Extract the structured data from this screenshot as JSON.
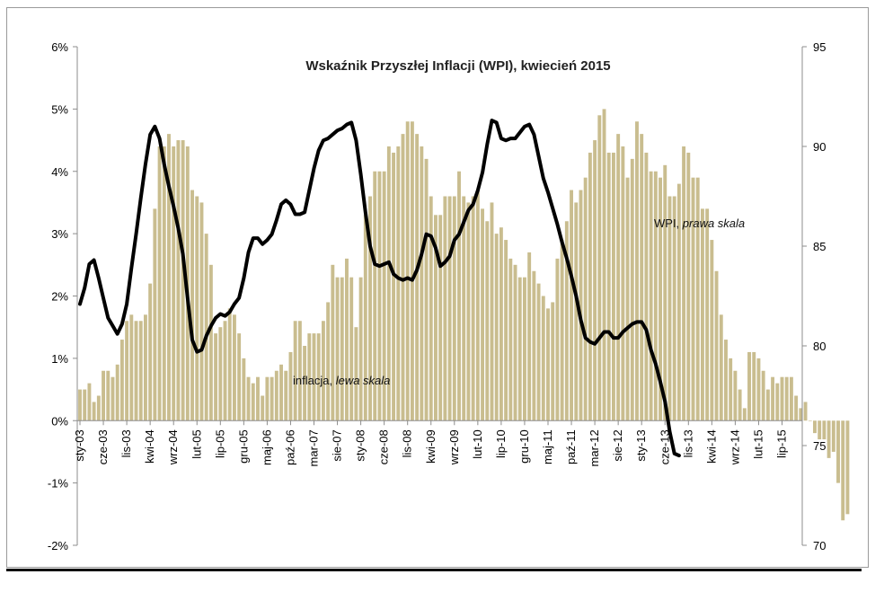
{
  "chart_data": {
    "type": "bar+line",
    "title": "Wskaźnik Przyszłej Inflacji (WPI), kwiecień 2015",
    "y_left": {
      "ticks": [
        "6%",
        "5%",
        "4%",
        "3%",
        "2%",
        "1%",
        "0%",
        "-1%",
        "-2%"
      ],
      "range": [
        -2,
        6
      ]
    },
    "y_right": {
      "ticks": [
        "95",
        "90",
        "85",
        "80",
        "75",
        "70"
      ],
      "range": [
        70,
        95
      ]
    },
    "x_labels": [
      "sty-03",
      "cze-03",
      "lis-03",
      "kwi-04",
      "wrz-04",
      "lut-05",
      "lip-05",
      "gru-05",
      "maj-06",
      "paź-06",
      "mar-07",
      "sie-07",
      "sty-08",
      "cze-08",
      "lis-08",
      "kwi-09",
      "wrz-09",
      "lut-10",
      "lip-10",
      "gru-10",
      "maj-11",
      "paź-11",
      "mar-12",
      "sie-12",
      "sty-13",
      "cze-13",
      "lis-13",
      "kwi-14",
      "wrz-14",
      "lut-15",
      "lip-15"
    ],
    "series": [
      {
        "name": "inflacja",
        "axis": "left",
        "type": "bar",
        "color": "#c9bd8f",
        "values": [
          0.5,
          0.5,
          0.6,
          0.3,
          0.4,
          0.8,
          0.8,
          0.7,
          0.9,
          1.3,
          1.6,
          1.7,
          1.6,
          1.6,
          1.7,
          2.2,
          3.4,
          4.4,
          4.4,
          4.6,
          4.4,
          4.5,
          4.5,
          4.4,
          3.7,
          3.6,
          3.5,
          3.0,
          2.5,
          1.4,
          1.5,
          1.6,
          1.8,
          1.7,
          1.4,
          1.0,
          0.7,
          0.6,
          0.7,
          0.4,
          0.7,
          0.7,
          0.8,
          0.9,
          0.8,
          1.1,
          1.6,
          1.6,
          1.2,
          1.4,
          1.4,
          1.4,
          1.6,
          1.9,
          2.5,
          2.3,
          2.3,
          2.6,
          2.3,
          1.5,
          2.3,
          3.3,
          3.6,
          4.0,
          4.0,
          4.0,
          4.4,
          4.3,
          4.4,
          4.6,
          4.8,
          4.8,
          4.6,
          4.4,
          4.2,
          3.6,
          3.3,
          3.3,
          3.6,
          3.6,
          3.6,
          4.0,
          3.6,
          3.5,
          3.6,
          3.7,
          3.4,
          3.2,
          3.5,
          3.0,
          3.1,
          2.9,
          2.6,
          2.5,
          2.3,
          2.3,
          2.7,
          2.4,
          2.2,
          2.0,
          1.8,
          1.9,
          2.6,
          2.9,
          3.2,
          3.7,
          3.5,
          3.7,
          3.9,
          4.3,
          4.5,
          4.9,
          5.0,
          4.3,
          4.3,
          4.6,
          4.4,
          3.9,
          4.2,
          4.8,
          4.6,
          4.3,
          4.0,
          4.0,
          3.9,
          4.1,
          3.6,
          3.6,
          3.8,
          4.4,
          4.3,
          3.9,
          3.9,
          3.4,
          3.4,
          2.9,
          2.4,
          1.7,
          1.3,
          1.0,
          0.8,
          0.5,
          0.2,
          1.1,
          1.1,
          1.0,
          0.8,
          0.5,
          0.7,
          0.6,
          0.7,
          0.7,
          0.7,
          0.4,
          0.2,
          0.3,
          0.0,
          -0.2,
          -0.3,
          -0.3,
          -0.6,
          -0.5,
          -1.0,
          -1.6,
          -1.5
        ]
      },
      {
        "name": "WPI",
        "axis": "right",
        "type": "line",
        "color": "#000000",
        "points": [
          [
            0,
            82.1
          ],
          [
            1,
            82.9
          ],
          [
            2,
            84.1
          ],
          [
            3,
            84.3
          ],
          [
            4,
            83.4
          ],
          [
            5,
            82.4
          ],
          [
            6,
            81.4
          ],
          [
            7,
            81.0
          ],
          [
            8,
            80.6
          ],
          [
            9,
            81.1
          ],
          [
            10,
            82.1
          ],
          [
            11,
            83.9
          ],
          [
            12,
            85.6
          ],
          [
            13,
            87.4
          ],
          [
            14,
            89.1
          ],
          [
            15,
            90.6
          ],
          [
            16,
            91.0
          ],
          [
            17,
            90.4
          ],
          [
            18,
            89.1
          ],
          [
            19,
            88.0
          ],
          [
            20,
            87.0
          ],
          [
            21,
            85.9
          ],
          [
            22,
            84.6
          ],
          [
            23,
            82.4
          ],
          [
            24,
            80.3
          ],
          [
            25,
            79.7
          ],
          [
            26,
            79.8
          ],
          [
            27,
            80.5
          ],
          [
            28,
            81.0
          ],
          [
            29,
            81.4
          ],
          [
            30,
            81.6
          ],
          [
            31,
            81.5
          ],
          [
            32,
            81.7
          ],
          [
            33,
            82.1
          ],
          [
            34,
            82.4
          ],
          [
            35,
            83.4
          ],
          [
            36,
            84.7
          ],
          [
            37,
            85.4
          ],
          [
            38,
            85.4
          ],
          [
            39,
            85.1
          ],
          [
            40,
            85.3
          ],
          [
            41,
            85.6
          ],
          [
            42,
            86.3
          ],
          [
            43,
            87.1
          ],
          [
            44,
            87.3
          ],
          [
            45,
            87.1
          ],
          [
            46,
            86.6
          ],
          [
            47,
            86.6
          ],
          [
            48,
            86.7
          ],
          [
            49,
            87.8
          ],
          [
            50,
            88.9
          ],
          [
            51,
            89.8
          ],
          [
            52,
            90.3
          ],
          [
            53,
            90.4
          ],
          [
            54,
            90.6
          ],
          [
            55,
            90.8
          ],
          [
            56,
            90.9
          ],
          [
            57,
            91.1
          ],
          [
            58,
            91.2
          ],
          [
            59,
            90.3
          ],
          [
            60,
            88.6
          ],
          [
            61,
            86.7
          ],
          [
            62,
            85.0
          ],
          [
            63,
            84.1
          ],
          [
            64,
            84.0
          ],
          [
            65,
            84.1
          ],
          [
            66,
            84.2
          ],
          [
            67,
            83.6
          ],
          [
            68,
            83.4
          ],
          [
            69,
            83.3
          ],
          [
            70,
            83.4
          ],
          [
            71,
            83.3
          ],
          [
            72,
            83.8
          ],
          [
            73,
            84.6
          ],
          [
            74,
            85.6
          ],
          [
            75,
            85.5
          ],
          [
            76,
            84.9
          ],
          [
            77,
            84.0
          ],
          [
            78,
            84.2
          ],
          [
            79,
            84.5
          ],
          [
            80,
            85.3
          ],
          [
            81,
            85.6
          ],
          [
            82,
            86.2
          ],
          [
            83,
            86.8
          ],
          [
            84,
            87.1
          ],
          [
            85,
            87.8
          ],
          [
            86,
            88.7
          ],
          [
            87,
            90.1
          ],
          [
            88,
            91.3
          ],
          [
            89,
            91.2
          ],
          [
            90,
            90.4
          ],
          [
            91,
            90.3
          ],
          [
            92,
            90.4
          ],
          [
            93,
            90.4
          ],
          [
            94,
            90.7
          ],
          [
            95,
            91.0
          ],
          [
            96,
            91.1
          ],
          [
            97,
            90.6
          ],
          [
            98,
            89.5
          ],
          [
            99,
            88.4
          ],
          [
            100,
            87.7
          ],
          [
            101,
            86.9
          ],
          [
            102,
            86.1
          ],
          [
            103,
            85.2
          ],
          [
            104,
            84.4
          ],
          [
            105,
            83.5
          ],
          [
            106,
            82.5
          ],
          [
            107,
            81.3
          ],
          [
            108,
            80.4
          ],
          [
            109,
            80.2
          ],
          [
            110,
            80.1
          ],
          [
            111,
            80.4
          ],
          [
            112,
            80.7
          ],
          [
            113,
            80.7
          ],
          [
            114,
            80.4
          ],
          [
            115,
            80.4
          ],
          [
            116,
            80.7
          ],
          [
            117,
            80.9
          ],
          [
            118,
            81.1
          ],
          [
            119,
            81.2
          ],
          [
            120,
            81.2
          ],
          [
            121,
            80.8
          ],
          [
            122,
            79.8
          ],
          [
            123,
            79.1
          ],
          [
            124,
            78.2
          ],
          [
            125,
            77.2
          ],
          [
            126,
            75.7
          ],
          [
            127,
            74.6
          ],
          [
            128,
            74.5
          ]
        ]
      }
    ],
    "annotations": [
      {
        "text_plain": "inflacja, ",
        "text_italic": "lewa skala"
      },
      {
        "text_plain": "WPI, ",
        "text_italic": "prawa skala"
      }
    ],
    "grid": false,
    "legend": "none"
  }
}
